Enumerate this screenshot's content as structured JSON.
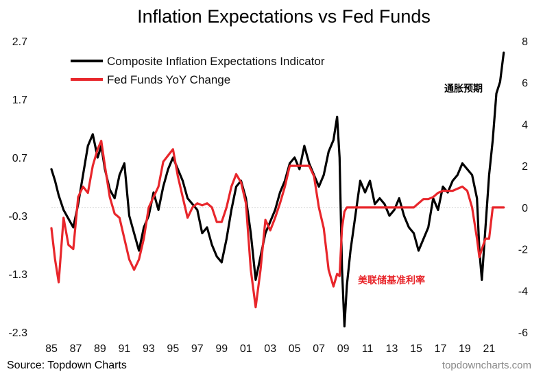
{
  "chart_data": {
    "type": "line",
    "title": "Inflation Expectations vs Fed Funds",
    "legend": [
      {
        "name": "Composite Inflation Expectations Indicator",
        "color": "#000000"
      },
      {
        "name": "Fed Funds YoY Change",
        "color": "#e8262b"
      }
    ],
    "legend_position": "top-left",
    "left_axis": {
      "ticks": [
        "2.7",
        "1.7",
        "0.7",
        "-0.3",
        "-1.3",
        "-2.3"
      ],
      "range": [
        -2.3,
        2.7
      ]
    },
    "right_axis": {
      "ticks": [
        "8",
        "6",
        "4",
        "2",
        "0",
        "-2",
        "-4",
        "-6"
      ],
      "range": [
        -6,
        8
      ]
    },
    "x_axis": {
      "ticks": [
        "85",
        "87",
        "89",
        "91",
        "93",
        "95",
        "97",
        "99",
        "01",
        "03",
        "05",
        "07",
        "09",
        "11",
        "13",
        "15",
        "17",
        "19",
        "21"
      ],
      "range": [
        1985,
        2022.5
      ]
    },
    "series": [
      {
        "name": "Composite Inflation Expectations Indicator",
        "axis": "left",
        "color": "#000000",
        "x": [
          1985,
          1985.3,
          1985.6,
          1986,
          1986.4,
          1986.8,
          1987.2,
          1987.6,
          1988,
          1988.4,
          1988.8,
          1989.1,
          1989.4,
          1989.8,
          1990.2,
          1990.6,
          1991,
          1991.4,
          1991.8,
          1992.2,
          1992.6,
          1993,
          1993.4,
          1993.8,
          1994.2,
          1994.6,
          1995,
          1995.4,
          1995.8,
          1996.2,
          1996.6,
          1997,
          1997.4,
          1997.8,
          1998.2,
          1998.6,
          1999,
          1999.4,
          1999.8,
          2000.2,
          2000.6,
          2001,
          2001.4,
          2001.8,
          2002.2,
          2002.6,
          2003,
          2003.4,
          2003.8,
          2004.2,
          2004.6,
          2005,
          2005.4,
          2005.8,
          2006.2,
          2006.6,
          2007,
          2007.4,
          2007.8,
          2008.2,
          2008.5,
          2008.7,
          2008.9,
          2009.1,
          2009.3,
          2009.6,
          2010,
          2010.4,
          2010.8,
          2011.2,
          2011.6,
          2012,
          2012.4,
          2012.8,
          2013.2,
          2013.6,
          2014,
          2014.4,
          2014.8,
          2015.2,
          2015.6,
          2016,
          2016.4,
          2016.8,
          2017.2,
          2017.6,
          2018,
          2018.4,
          2018.8,
          2019.2,
          2019.6,
          2020,
          2020.2,
          2020.4,
          2020.7,
          2021,
          2021.3,
          2021.6,
          2021.9,
          2022.2
        ],
        "values": [
          0.5,
          0.3,
          0.05,
          -0.2,
          -0.35,
          -0.5,
          -0.1,
          0.4,
          0.9,
          1.1,
          0.7,
          0.9,
          0.5,
          0.15,
          0.0,
          0.4,
          0.6,
          -0.3,
          -0.6,
          -0.9,
          -0.5,
          -0.3,
          0.1,
          -0.2,
          0.2,
          0.5,
          0.7,
          0.5,
          0.3,
          0.0,
          -0.1,
          -0.2,
          -0.6,
          -0.5,
          -0.8,
          -1.0,
          -1.1,
          -0.7,
          -0.2,
          0.2,
          0.3,
          0.0,
          -0.6,
          -1.4,
          -1.0,
          -0.6,
          -0.4,
          -0.2,
          0.1,
          0.3,
          0.6,
          0.7,
          0.5,
          0.9,
          0.6,
          0.4,
          0.2,
          0.4,
          0.8,
          1.0,
          1.4,
          0.7,
          -1.2,
          -2.2,
          -1.5,
          -0.9,
          -0.3,
          0.3,
          0.1,
          0.3,
          -0.1,
          0.0,
          -0.1,
          -0.3,
          -0.2,
          0.0,
          -0.3,
          -0.5,
          -0.6,
          -0.9,
          -0.7,
          -0.5,
          0.0,
          -0.2,
          0.2,
          0.1,
          0.3,
          0.4,
          0.6,
          0.5,
          0.4,
          0.0,
          -0.9,
          -1.4,
          -0.5,
          0.4,
          1.0,
          1.8,
          2.0,
          2.5
        ]
      },
      {
        "name": "Fed Funds YoY Change",
        "axis": "right",
        "color": "#e8262b",
        "x": [
          1985,
          1985.3,
          1985.6,
          1986,
          1986.4,
          1986.8,
          1987.2,
          1987.6,
          1988,
          1988.4,
          1988.8,
          1989.1,
          1989.4,
          1989.8,
          1990.2,
          1990.6,
          1991,
          1991.4,
          1991.8,
          1992.2,
          1992.6,
          1993,
          1993.4,
          1993.8,
          1994.2,
          1994.6,
          1995,
          1995.4,
          1995.8,
          1996.2,
          1996.6,
          1997,
          1997.4,
          1997.8,
          1998.2,
          1998.6,
          1999,
          1999.4,
          1999.8,
          2000.2,
          2000.6,
          2001,
          2001.4,
          2001.8,
          2002.2,
          2002.6,
          2003,
          2003.4,
          2003.8,
          2004.2,
          2004.6,
          2005,
          2005.4,
          2005.8,
          2006.2,
          2006.6,
          2007,
          2007.4,
          2007.8,
          2008.2,
          2008.5,
          2008.7,
          2008.9,
          2009.1,
          2009.3,
          2009.6,
          2010,
          2010.4,
          2010.8,
          2011.2,
          2011.6,
          2012,
          2012.4,
          2012.8,
          2013.2,
          2013.6,
          2014,
          2014.4,
          2014.8,
          2015.2,
          2015.6,
          2016,
          2016.4,
          2016.8,
          2017.2,
          2017.6,
          2018,
          2018.4,
          2018.8,
          2019.2,
          2019.6,
          2020,
          2020.2,
          2020.4,
          2020.7,
          2021,
          2021.3,
          2021.6,
          2021.9,
          2022.2
        ],
        "values": [
          -1.0,
          -2.5,
          -3.6,
          -0.5,
          -1.8,
          -2.0,
          0.5,
          1.0,
          0.7,
          2.0,
          2.8,
          3.2,
          2.0,
          0.5,
          -0.3,
          -0.5,
          -1.5,
          -2.5,
          -3.0,
          -2.5,
          -1.5,
          0.0,
          0.5,
          1.0,
          2.2,
          2.5,
          2.8,
          1.5,
          0.5,
          -0.5,
          0.0,
          0.2,
          0.1,
          0.2,
          0.0,
          -0.7,
          -0.7,
          0.0,
          1.0,
          1.6,
          1.2,
          0.2,
          -3.0,
          -4.8,
          -3.0,
          -0.6,
          -1.1,
          -0.5,
          0.2,
          1.0,
          2.0,
          2.0,
          2.0,
          2.0,
          2.0,
          1.5,
          0.0,
          -1.0,
          -3.0,
          -3.8,
          -3.2,
          -3.3,
          -1.0,
          -0.2,
          0.0,
          0.0,
          0.0,
          0.0,
          0.0,
          0.0,
          0.0,
          0.0,
          0.0,
          0.0,
          0.0,
          0.0,
          0.0,
          0.0,
          0.0,
          0.2,
          0.4,
          0.4,
          0.5,
          0.7,
          0.8,
          0.8,
          0.8,
          0.9,
          1.0,
          0.8,
          0.0,
          -1.5,
          -2.4,
          -2.0,
          -1.5,
          -1.5,
          0.0,
          0.0,
          0.0,
          0.0
        ]
      }
    ],
    "annotations": [
      {
        "text": "通胀预期",
        "color": "#000000"
      },
      {
        "text": "美联储基准利率",
        "color": "#e8262b"
      }
    ]
  },
  "footer": {
    "source": "Source: Topdown Charts",
    "watermark": "topdowncharts.com"
  }
}
